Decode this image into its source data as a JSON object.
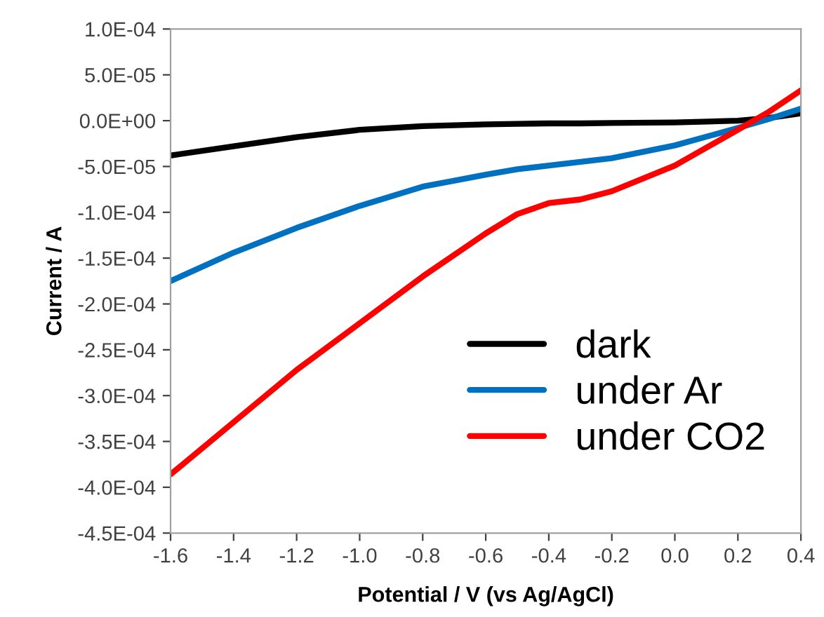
{
  "chart_data": {
    "type": "line",
    "xlabel": "Potential / V (vs Ag/AgCl)",
    "ylabel": "Current / A",
    "x": [
      -1.6,
      -1.4,
      -1.2,
      -1.0,
      -0.8,
      -0.6,
      -0.5,
      -0.4,
      -0.3,
      -0.2,
      0.0,
      0.2,
      0.3,
      0.4
    ],
    "series": [
      {
        "name": "dark",
        "color": "#000000",
        "values": [
          -3.8e-05,
          -2.8e-05,
          -1.8e-05,
          -1e-05,
          -6e-06,
          -4e-06,
          -3.5e-06,
          -3e-06,
          -3e-06,
          -2.5e-06,
          -2e-06,
          0.0,
          3e-06,
          8e-06
        ]
      },
      {
        "name": "under Ar",
        "color": "#0070c0",
        "values": [
          -0.000175,
          -0.000144,
          -0.000117,
          -9.3e-05,
          -7.2e-05,
          -5.9e-05,
          -5.3e-05,
          -4.9e-05,
          -4.5e-05,
          -4.1e-05,
          -2.7e-05,
          -8e-06,
          2e-06,
          1.3e-05
        ]
      },
      {
        "name": "under CO2",
        "color": "#ff0000",
        "values": [
          -0.000386,
          -0.000329,
          -0.000272,
          -0.000221,
          -0.00017,
          -0.000123,
          -0.000102,
          -9e-05,
          -8.6e-05,
          -7.7e-05,
          -4.9e-05,
          -1e-05,
          1e-05,
          3.3e-05
        ]
      }
    ],
    "xlim": [
      -1.6,
      0.4
    ],
    "xticks": [
      -1.6,
      -1.4,
      -1.2,
      {
        "value": -1.0,
        "label": "-1.0"
      },
      -0.8,
      -0.6,
      -0.4,
      -0.2,
      {
        "value": 0.0,
        "label": "0.0"
      },
      0.2,
      0.4
    ],
    "ylim": [
      -0.00045,
      0.0001
    ],
    "yticks": [
      {
        "value": -0.00045,
        "label": "-4.5E-04"
      },
      {
        "value": -0.0004,
        "label": "-4.0E-04"
      },
      {
        "value": -0.00035,
        "label": "-3.5E-04"
      },
      {
        "value": -0.0003,
        "label": "-3.0E-04"
      },
      {
        "value": -0.00025,
        "label": "-2.5E-04"
      },
      {
        "value": -0.0002,
        "label": "-2.0E-04"
      },
      {
        "value": -0.00015,
        "label": "-1.5E-04"
      },
      {
        "value": -0.0001,
        "label": "-1.0E-04"
      },
      {
        "value": -5e-05,
        "label": "-5.0E-05"
      },
      {
        "value": 0,
        "label": "0.0E+00"
      },
      {
        "value": 5e-05,
        "label": "5.0E-05"
      },
      {
        "value": 0.0001,
        "label": "1.0E-04"
      }
    ],
    "legend": "bottom right",
    "grid": false,
    "marker": "none",
    "line_style": "solid"
  }
}
